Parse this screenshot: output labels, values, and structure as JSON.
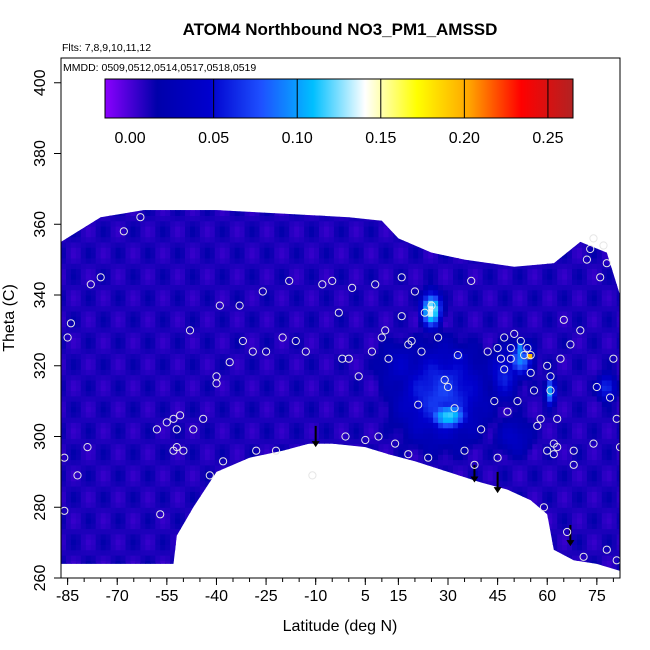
{
  "chart_data": {
    "type": "heatmap",
    "title": "ATOM4 Northbound NO3_PM1_AMSSD",
    "notes": [
      "Flts: 7,8,9,10,11,12",
      "MMDD: 0509,0512,0514,0517,0518,0519"
    ],
    "xlabel": "Latitude (deg N)",
    "ylabel": "Theta (C)",
    "xlim": [
      -87,
      82
    ],
    "ylim": [
      260,
      407
    ],
    "x_ticks": [
      -85,
      -70,
      -55,
      -40,
      -25,
      -10,
      5,
      15,
      30,
      45,
      60,
      75
    ],
    "x_tick_labels": [
      "-85",
      "-70",
      "-55",
      "-40",
      "-25",
      "-10",
      "5",
      "15",
      "30",
      "45",
      "60",
      "75"
    ],
    "y_ticks": [
      260,
      280,
      300,
      320,
      340,
      360,
      380,
      400
    ],
    "y_tick_labels": [
      "260",
      "280",
      "300",
      "320",
      "340",
      "360",
      "380",
      "400"
    ],
    "colorbar": {
      "min": -0.015,
      "max": 0.265,
      "ticks": [
        0.0,
        0.05,
        0.1,
        0.15,
        0.2,
        0.25
      ],
      "tick_labels": [
        "0.00",
        "0.05",
        "0.10",
        "0.15",
        "0.20",
        "0.25"
      ],
      "colors": [
        "#8b00ff",
        "#0000aa",
        "#0000cd",
        "#1e50ff",
        "#00bfff",
        "#ffffff",
        "#ffff00",
        "#ffa500",
        "#ff0000",
        "#b22222"
      ]
    },
    "field": {
      "background_value": 0.01,
      "boundary_top": [
        [
          -87,
          355
        ],
        [
          -75,
          362
        ],
        [
          -62,
          364
        ],
        [
          -40,
          364
        ],
        [
          -20,
          363
        ],
        [
          0,
          362
        ],
        [
          10,
          361
        ],
        [
          15,
          356
        ],
        [
          25,
          352
        ],
        [
          35,
          350
        ],
        [
          50,
          348
        ],
        [
          62,
          349
        ],
        [
          70,
          355
        ],
        [
          78,
          352
        ],
        [
          82,
          340
        ]
      ],
      "boundary_bottom": [
        [
          82,
          262
        ],
        [
          75,
          264
        ],
        [
          68,
          265
        ],
        [
          62,
          268
        ],
        [
          60,
          278
        ],
        [
          55,
          282
        ],
        [
          48,
          285
        ],
        [
          40,
          287
        ],
        [
          30,
          290
        ],
        [
          20,
          293
        ],
        [
          12,
          295
        ],
        [
          5,
          297
        ],
        [
          -5,
          298
        ],
        [
          -12,
          298
        ],
        [
          -20,
          296
        ],
        [
          -30,
          294
        ],
        [
          -40,
          290
        ],
        [
          -47,
          280
        ],
        [
          -52,
          272
        ],
        [
          -53,
          264
        ],
        [
          -87,
          264
        ]
      ],
      "hotspots": [
        {
          "lat": 25,
          "theta": 336,
          "value": 0.14,
          "spread_lat": 3,
          "spread_theta": 5
        },
        {
          "lat": 25,
          "theta": 337,
          "value": 0.2,
          "spread_lat": 1.0,
          "spread_theta": 1.2
        },
        {
          "lat": 30,
          "theta": 306,
          "value": 0.12,
          "spread_lat": 6,
          "spread_theta": 4
        },
        {
          "lat": 28,
          "theta": 312,
          "value": 0.07,
          "spread_lat": 14,
          "spread_theta": 14
        },
        {
          "lat": 52,
          "theta": 322,
          "value": 0.09,
          "spread_lat": 4,
          "spread_theta": 5
        },
        {
          "lat": 52,
          "theta": 325,
          "value": 0.15,
          "spread_lat": 1.2,
          "spread_theta": 1.2
        },
        {
          "lat": 55,
          "theta": 323,
          "value": 0.24,
          "spread_lat": 0.8,
          "spread_theta": 0.8
        },
        {
          "lat": 61,
          "theta": 313,
          "value": 0.11,
          "spread_lat": 1.5,
          "spread_theta": 4
        },
        {
          "lat": 47,
          "theta": 318,
          "value": 0.06,
          "spread_lat": 5,
          "spread_theta": 8
        },
        {
          "lat": 78,
          "theta": 314,
          "value": 0.07,
          "spread_lat": 3,
          "spread_theta": 4
        },
        {
          "lat": 33,
          "theta": 323,
          "value": 0.06,
          "spread_lat": 3,
          "spread_theta": 2
        },
        {
          "lat": 16,
          "theta": 320,
          "value": 0.04,
          "spread_lat": 8,
          "spread_theta": 8
        },
        {
          "lat": 50,
          "theta": 300,
          "value": 0.04,
          "spread_lat": 6,
          "spread_theta": 6
        }
      ]
    },
    "samples": [
      {
        "lat": -86,
        "theta": 294
      },
      {
        "lat": -86,
        "theta": 279
      },
      {
        "lat": -85,
        "theta": 328
      },
      {
        "lat": -84,
        "theta": 332
      },
      {
        "lat": -82,
        "theta": 289
      },
      {
        "lat": -79,
        "theta": 297
      },
      {
        "lat": -78,
        "theta": 343
      },
      {
        "lat": -75,
        "theta": 345
      },
      {
        "lat": -68,
        "theta": 358
      },
      {
        "lat": -63,
        "theta": 362
      },
      {
        "lat": -58,
        "theta": 302
      },
      {
        "lat": -57,
        "theta": 278
      },
      {
        "lat": -55,
        "theta": 304
      },
      {
        "lat": -53,
        "theta": 305
      },
      {
        "lat": -52,
        "theta": 302
      },
      {
        "lat": -52,
        "theta": 297
      },
      {
        "lat": -53,
        "theta": 296
      },
      {
        "lat": -51,
        "theta": 306
      },
      {
        "lat": -50,
        "theta": 296
      },
      {
        "lat": -48,
        "theta": 330
      },
      {
        "lat": -47,
        "theta": 302
      },
      {
        "lat": -44,
        "theta": 305
      },
      {
        "lat": -42,
        "theta": 289
      },
      {
        "lat": -40,
        "theta": 317
      },
      {
        "lat": -40,
        "theta": 315
      },
      {
        "lat": -39,
        "theta": 337
      },
      {
        "lat": -38,
        "theta": 293
      },
      {
        "lat": -36,
        "theta": 321
      },
      {
        "lat": -33,
        "theta": 337
      },
      {
        "lat": -32,
        "theta": 327
      },
      {
        "lat": -29,
        "theta": 324
      },
      {
        "lat": -28,
        "theta": 296
      },
      {
        "lat": -26,
        "theta": 341
      },
      {
        "lat": -25,
        "theta": 324
      },
      {
        "lat": -22,
        "theta": 296
      },
      {
        "lat": -20,
        "theta": 328
      },
      {
        "lat": -18,
        "theta": 344
      },
      {
        "lat": -16,
        "theta": 327
      },
      {
        "lat": -13,
        "theta": 324
      },
      {
        "lat": -11,
        "theta": 289
      },
      {
        "lat": -8,
        "theta": 343
      },
      {
        "lat": -5,
        "theta": 344
      },
      {
        "lat": -3,
        "theta": 335
      },
      {
        "lat": -2,
        "theta": 322
      },
      {
        "lat": -1,
        "theta": 300
      },
      {
        "lat": 0,
        "theta": 322
      },
      {
        "lat": 1,
        "theta": 342
      },
      {
        "lat": 3,
        "theta": 317
      },
      {
        "lat": 5,
        "theta": 299
      },
      {
        "lat": 7,
        "theta": 324
      },
      {
        "lat": 8,
        "theta": 343
      },
      {
        "lat": 9,
        "theta": 300
      },
      {
        "lat": 10,
        "theta": 328
      },
      {
        "lat": 11,
        "theta": 330
      },
      {
        "lat": 12,
        "theta": 322
      },
      {
        "lat": 14,
        "theta": 298
      },
      {
        "lat": 16,
        "theta": 334
      },
      {
        "lat": 16,
        "theta": 345
      },
      {
        "lat": 18,
        "theta": 326
      },
      {
        "lat": 18,
        "theta": 295
      },
      {
        "lat": 19,
        "theta": 327
      },
      {
        "lat": 20,
        "theta": 341
      },
      {
        "lat": 21,
        "theta": 309
      },
      {
        "lat": 22,
        "theta": 324
      },
      {
        "lat": 23,
        "theta": 335
      },
      {
        "lat": 24,
        "theta": 294
      },
      {
        "lat": 25,
        "theta": 337
      },
      {
        "lat": 27,
        "theta": 328
      },
      {
        "lat": 29,
        "theta": 316
      },
      {
        "lat": 30,
        "theta": 314
      },
      {
        "lat": 32,
        "theta": 308
      },
      {
        "lat": 33,
        "theta": 323
      },
      {
        "lat": 35,
        "theta": 296
      },
      {
        "lat": 37,
        "theta": 344
      },
      {
        "lat": 38,
        "theta": 292
      },
      {
        "lat": 40,
        "theta": 302
      },
      {
        "lat": 42,
        "theta": 324
      },
      {
        "lat": 44,
        "theta": 310
      },
      {
        "lat": 45,
        "theta": 325
      },
      {
        "lat": 45,
        "theta": 294
      },
      {
        "lat": 46,
        "theta": 322
      },
      {
        "lat": 47,
        "theta": 319
      },
      {
        "lat": 47,
        "theta": 328
      },
      {
        "lat": 48,
        "theta": 307
      },
      {
        "lat": 49,
        "theta": 325
      },
      {
        "lat": 49,
        "theta": 322
      },
      {
        "lat": 50,
        "theta": 329
      },
      {
        "lat": 51,
        "theta": 310
      },
      {
        "lat": 52,
        "theta": 327
      },
      {
        "lat": 53,
        "theta": 323
      },
      {
        "lat": 54,
        "theta": 325
      },
      {
        "lat": 55,
        "theta": 323
      },
      {
        "lat": 55,
        "theta": 318
      },
      {
        "lat": 56,
        "theta": 313
      },
      {
        "lat": 57,
        "theta": 303
      },
      {
        "lat": 58,
        "theta": 305
      },
      {
        "lat": 59,
        "theta": 280
      },
      {
        "lat": 60,
        "theta": 296
      },
      {
        "lat": 60,
        "theta": 320
      },
      {
        "lat": 61,
        "theta": 317
      },
      {
        "lat": 61,
        "theta": 313
      },
      {
        "lat": 62,
        "theta": 295
      },
      {
        "lat": 62,
        "theta": 298
      },
      {
        "lat": 63,
        "theta": 297
      },
      {
        "lat": 63,
        "theta": 305
      },
      {
        "lat": 64,
        "theta": 322
      },
      {
        "lat": 65,
        "theta": 333
      },
      {
        "lat": 66,
        "theta": 273
      },
      {
        "lat": 67,
        "theta": 326
      },
      {
        "lat": 68,
        "theta": 296
      },
      {
        "lat": 68,
        "theta": 292
      },
      {
        "lat": 70,
        "theta": 330
      },
      {
        "lat": 71,
        "theta": 266
      },
      {
        "lat": 72,
        "theta": 350
      },
      {
        "lat": 73,
        "theta": 353
      },
      {
        "lat": 74,
        "theta": 298
      },
      {
        "lat": 74,
        "theta": 356
      },
      {
        "lat": 75,
        "theta": 314
      },
      {
        "lat": 76,
        "theta": 345
      },
      {
        "lat": 77,
        "theta": 354
      },
      {
        "lat": 78,
        "theta": 268
      },
      {
        "lat": 78,
        "theta": 349
      },
      {
        "lat": 79,
        "theta": 311
      },
      {
        "lat": 80,
        "theta": 322
      },
      {
        "lat": 81,
        "theta": 305
      },
      {
        "lat": 81,
        "theta": 265
      },
      {
        "lat": 82,
        "theta": 297
      }
    ],
    "arrows": [
      {
        "lat": -10,
        "theta_top": 303,
        "theta_bottom": 297
      },
      {
        "lat": 38,
        "theta_top": 292,
        "theta_bottom": 287
      },
      {
        "lat": 45,
        "theta_top": 290,
        "theta_bottom": 284
      },
      {
        "lat": 67,
        "theta_top": 275,
        "theta_bottom": 269
      }
    ]
  }
}
